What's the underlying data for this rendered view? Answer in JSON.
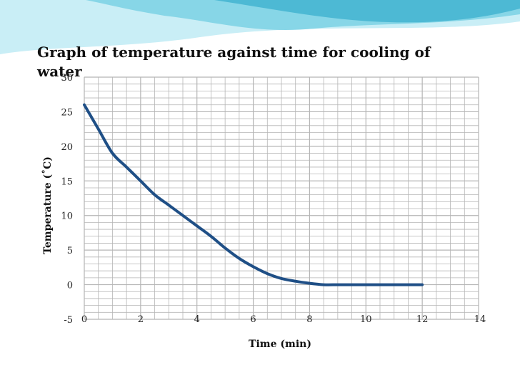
{
  "slide": {
    "title": "Graph of temperature against time for cooling of water"
  },
  "colors": {
    "banner_light": "#c9eef6",
    "banner_mid": "#7fd3e6",
    "banner_dark": "#3fb2cf",
    "grid": "#b5b5b5",
    "curve": "#1f4f86"
  },
  "chart_data": {
    "type": "line",
    "title": "Graph of temperature against time for cooling of water",
    "xlabel": "Time (min)",
    "ylabel": "Temperature (˚C)",
    "xlim": [
      0,
      14
    ],
    "ylim": [
      -5,
      30
    ],
    "x_ticks": [
      0,
      2,
      4,
      6,
      8,
      10,
      12,
      14
    ],
    "y_ticks": [
      -5,
      0,
      5,
      10,
      15,
      20,
      25,
      30
    ],
    "grid": true,
    "series": [
      {
        "x": [
          0,
          0.5,
          1,
          1.5,
          2,
          2.5,
          3,
          3.5,
          4,
          4.5,
          5,
          5.5,
          6,
          6.5,
          7,
          7.5,
          8,
          8.5,
          9,
          9.5,
          10,
          10.5,
          11,
          11.5,
          12
        ],
        "values": [
          26,
          22.5,
          19,
          17,
          15,
          13,
          11.5,
          10,
          8.5,
          7,
          5.3,
          3.8,
          2.6,
          1.6,
          0.9,
          0.5,
          0.2,
          0,
          0,
          0,
          0,
          0,
          0,
          0,
          0
        ]
      }
    ]
  }
}
